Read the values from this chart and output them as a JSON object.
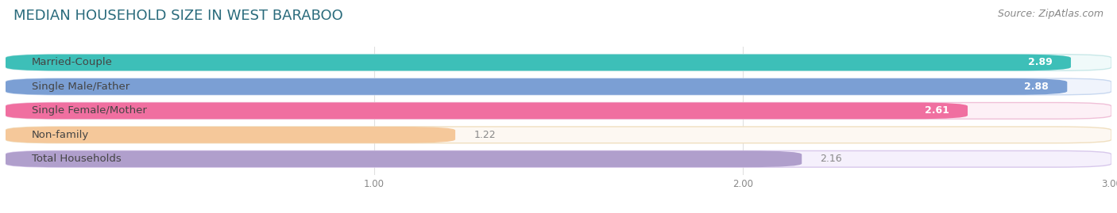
{
  "title": "MEDIAN HOUSEHOLD SIZE IN WEST BARABOO",
  "source": "Source: ZipAtlas.com",
  "categories": [
    "Married-Couple",
    "Single Male/Father",
    "Single Female/Mother",
    "Non-family",
    "Total Households"
  ],
  "values": [
    2.89,
    2.88,
    2.61,
    1.22,
    2.16
  ],
  "bar_colors": [
    "#3dbfb8",
    "#7b9fd4",
    "#f06fa0",
    "#f5c89a",
    "#b09fcc"
  ],
  "bar_bg_colors": [
    "#f0fafa",
    "#f0f4fc",
    "#fdf0f6",
    "#fdf8f2",
    "#f5f0fc"
  ],
  "border_colors": [
    "#c8e8e8",
    "#c8d8f0",
    "#f0c0d8",
    "#f0dfc0",
    "#d8c8ec"
  ],
  "xlim_max": 3.0,
  "xticks": [
    1.0,
    2.0,
    3.0
  ],
  "label_dark_color": "#444444",
  "value_white_color": "#ffffff",
  "value_dark_color": "#888888",
  "title_color": "#2a6b7c",
  "source_color": "#888888",
  "title_fontsize": 13,
  "label_fontsize": 9.5,
  "value_fontsize": 9,
  "source_fontsize": 9,
  "bg_color": "#ffffff",
  "grid_color": "#e0e0e0"
}
